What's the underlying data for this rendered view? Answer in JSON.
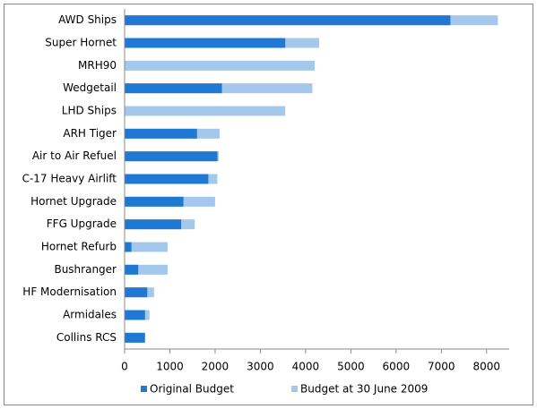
{
  "chart_data": {
    "type": "bar",
    "orientation": "horizontal",
    "overlap": true,
    "categories": [
      "AWD Ships",
      "Super Hornet",
      "MRH90",
      "Wedgetail",
      "LHD Ships",
      "ARH Tiger",
      "Air to Air Refuel",
      "C-17 Heavy Airlift",
      "Hornet Upgrade",
      "FFG Upgrade",
      "Hornet Refurb",
      "Bushranger",
      "HF Modernisation",
      "Armidales",
      "Collins RCS"
    ],
    "series": [
      {
        "name": "Budget at 30 June 2009",
        "color": "#a4c8ec",
        "values": [
          8250,
          4300,
          4200,
          4150,
          3550,
          2100,
          2080,
          2050,
          2000,
          1550,
          950,
          950,
          650,
          550,
          450
        ]
      },
      {
        "name": "Original Budget",
        "color": "#1f78d1",
        "values": [
          7200,
          3550,
          null,
          2150,
          null,
          1600,
          2050,
          1850,
          1300,
          1250,
          150,
          300,
          500,
          450,
          450
        ]
      }
    ],
    "legend_order": [
      1,
      0
    ],
    "xlim": [
      0,
      8500
    ],
    "xticks": [
      0,
      1000,
      2000,
      3000,
      4000,
      5000,
      6000,
      7000,
      8000
    ],
    "grid": false
  }
}
